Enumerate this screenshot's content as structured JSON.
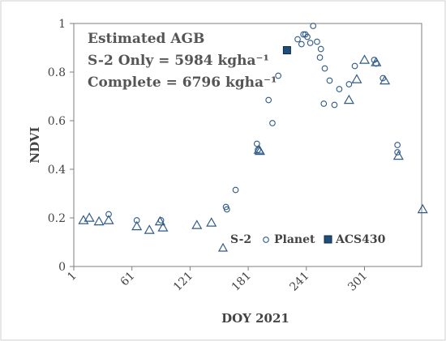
{
  "chart_data": {
    "type": "scatter",
    "xlabel": "DOY 2021",
    "ylabel": "NDVI",
    "xlim": [
      1,
      360
    ],
    "ylim": [
      0,
      1
    ],
    "xticks": [
      1,
      61,
      121,
      181,
      241,
      301
    ],
    "yticks": [
      0,
      0.2,
      0.4,
      0.6,
      0.8,
      1
    ],
    "xtick_labels": [
      "1",
      "61",
      "121",
      "181",
      "241",
      "301"
    ],
    "ytick_labels": [
      "0",
      "0.2",
      "0.4",
      "0.6",
      "0.8",
      "1"
    ],
    "grid": false,
    "annotation_lines": [
      "Estimated AGB",
      "S-2 Only = 5984 kgha⁻¹",
      "Complete = 6796 kgha⁻¹"
    ],
    "legend": {
      "position": "bottom-right"
    },
    "series": [
      {
        "name": "S-2",
        "marker": "triangle",
        "color": "#2e5a87",
        "x": [
          11,
          17,
          27,
          37,
          66,
          79,
          90,
          93,
          128,
          143,
          192,
          193,
          285,
          293,
          301,
          313,
          322,
          336,
          361
        ],
        "y": [
          0.19,
          0.2,
          0.185,
          0.19,
          0.165,
          0.15,
          0.185,
          0.16,
          0.17,
          0.18,
          0.48,
          0.475,
          0.685,
          0.77,
          0.85,
          0.84,
          0.765,
          0.455,
          0.235
        ]
      },
      {
        "name": "Planet",
        "marker": "circle",
        "color": "#2e5a87",
        "x": [
          37,
          66,
          91,
          158,
          159,
          168,
          190,
          191,
          202,
          206,
          212,
          232,
          236,
          238,
          240,
          242,
          245,
          248,
          252,
          255,
          256,
          259,
          260,
          265,
          270,
          275,
          285,
          291,
          311,
          313,
          320,
          335,
          335
        ],
        "y": [
          0.215,
          0.19,
          0.19,
          0.245,
          0.235,
          0.315,
          0.505,
          0.48,
          0.685,
          0.59,
          0.785,
          0.935,
          0.915,
          0.955,
          0.955,
          0.945,
          0.92,
          0.99,
          0.925,
          0.86,
          0.895,
          0.67,
          0.815,
          0.765,
          0.665,
          0.73,
          0.75,
          0.825,
          0.85,
          0.835,
          0.775,
          0.5,
          0.47
        ]
      },
      {
        "name": "ACS430",
        "marker": "square",
        "color": "#1f4e79",
        "x": [
          221
        ],
        "y": [
          0.89
        ]
      }
    ]
  }
}
